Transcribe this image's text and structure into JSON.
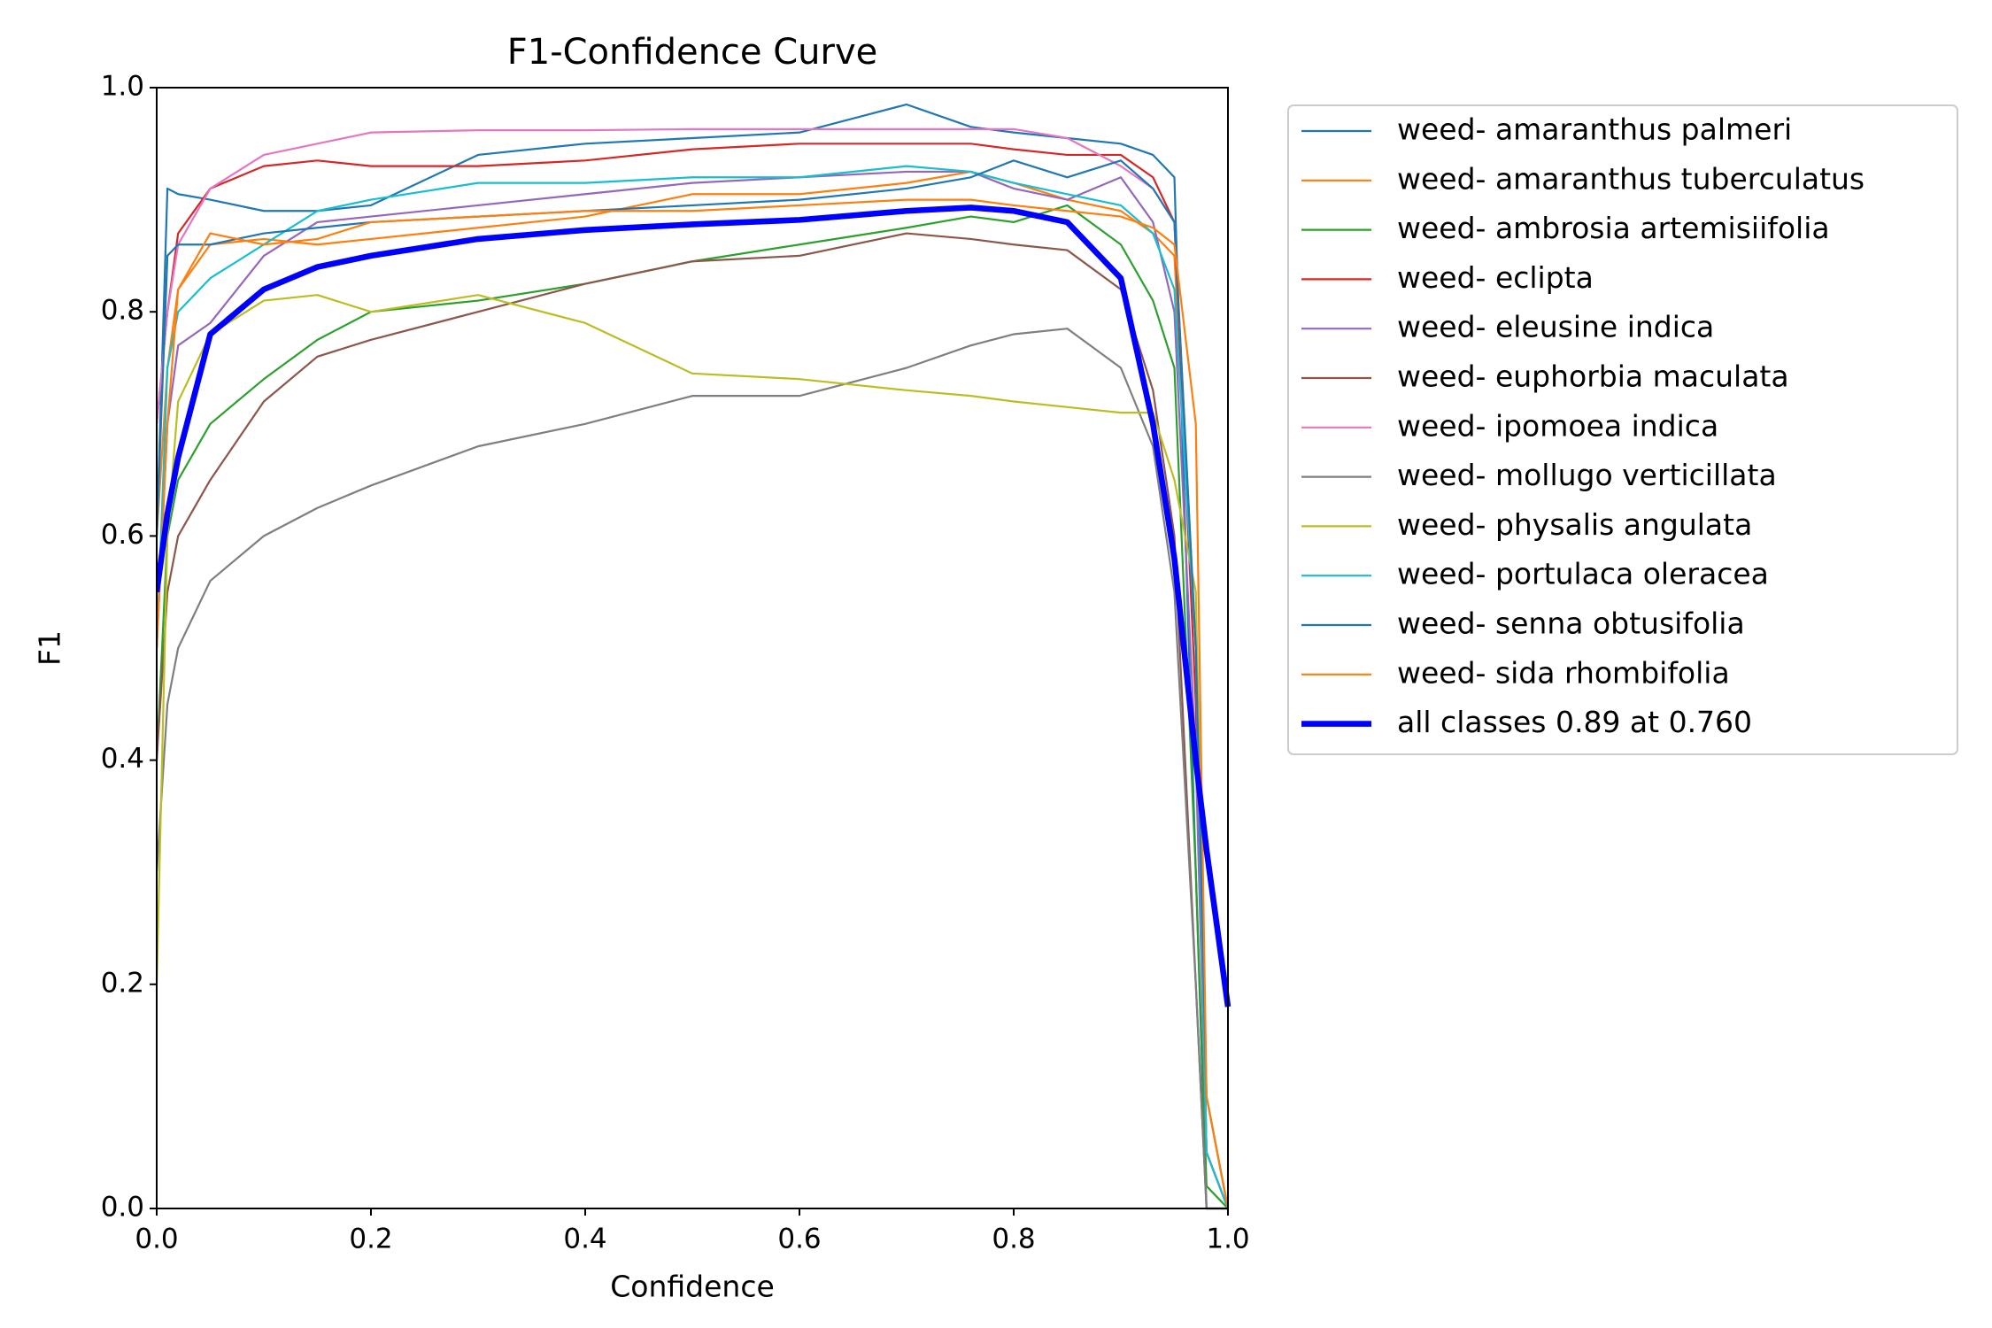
{
  "chart_data": {
    "type": "line",
    "title": "F1-Confidence Curve",
    "xlabel": "Confidence",
    "ylabel": "F1",
    "x": [
      0,
      0.01,
      0.02,
      0.05,
      0.1,
      0.15,
      0.2,
      0.3,
      0.4,
      0.5,
      0.6,
      0.7,
      0.76,
      0.8,
      0.85,
      0.9,
      0.93,
      0.95,
      0.97,
      0.98,
      1.0
    ],
    "xlim": [
      0,
      1
    ],
    "ylim": [
      0,
      1
    ],
    "xticks": [
      {
        "value": 0,
        "label": "0.0"
      },
      0.2,
      0.4,
      0.6,
      0.8,
      {
        "value": 1,
        "label": "1.0"
      }
    ],
    "yticks": [
      {
        "value": 0,
        "label": "0.0"
      },
      0.2,
      0.4,
      0.6,
      0.8,
      {
        "value": 1,
        "label": "1.0"
      }
    ],
    "grid": false,
    "legend": "outside-right",
    "series": [
      {
        "name": "weed- amaranthus palmeri",
        "color": "#1f77b4",
        "linewidth": 1,
        "values": [
          0.6,
          0.91,
          0.905,
          0.9,
          0.89,
          0.89,
          0.895,
          0.94,
          0.95,
          0.955,
          0.96,
          0.985,
          0.965,
          0.96,
          0.955,
          0.95,
          0.94,
          0.92,
          0.3,
          0.0,
          0.0
        ]
      },
      {
        "name": "weed- amaranthus tuberculatus",
        "color": "#ff7f0e",
        "linewidth": 1,
        "values": [
          0.6,
          0.75,
          0.82,
          0.86,
          0.865,
          0.86,
          0.865,
          0.875,
          0.885,
          0.905,
          0.905,
          0.915,
          0.925,
          0.915,
          0.9,
          0.89,
          0.87,
          0.85,
          0.5,
          0.05,
          0.0
        ]
      },
      {
        "name": "weed- ambrosia artemisiifolia",
        "color": "#2ca02c",
        "linewidth": 1,
        "values": [
          0.4,
          0.6,
          0.65,
          0.7,
          0.74,
          0.775,
          0.8,
          0.81,
          0.825,
          0.845,
          0.86,
          0.875,
          0.885,
          0.88,
          0.895,
          0.86,
          0.81,
          0.75,
          0.3,
          0.02,
          0.0
        ]
      },
      {
        "name": "weed- eclipta",
        "color": "#d62728",
        "linewidth": 1,
        "values": [
          0.7,
          0.8,
          0.87,
          0.91,
          0.93,
          0.935,
          0.93,
          0.93,
          0.935,
          0.945,
          0.95,
          0.95,
          0.95,
          0.945,
          0.94,
          0.94,
          0.92,
          0.88,
          0.45,
          0.05,
          0.0
        ]
      },
      {
        "name": "weed- eleusine indica",
        "color": "#9467bd",
        "linewidth": 1,
        "values": [
          0.5,
          0.7,
          0.77,
          0.79,
          0.85,
          0.88,
          0.885,
          0.895,
          0.905,
          0.915,
          0.92,
          0.925,
          0.925,
          0.91,
          0.9,
          0.92,
          0.88,
          0.8,
          0.4,
          0.05,
          0.0
        ]
      },
      {
        "name": "weed- euphorbia maculata",
        "color": "#8c564b",
        "linewidth": 1,
        "values": [
          0.4,
          0.55,
          0.6,
          0.65,
          0.72,
          0.76,
          0.775,
          0.8,
          0.825,
          0.845,
          0.85,
          0.87,
          0.865,
          0.86,
          0.855,
          0.82,
          0.73,
          0.6,
          0.2,
          0.0,
          0.0
        ]
      },
      {
        "name": "weed- ipomoea indica",
        "color": "#e377c2",
        "linewidth": 1,
        "values": [
          0.7,
          0.8,
          0.86,
          0.91,
          0.94,
          0.95,
          0.96,
          0.962,
          0.962,
          0.963,
          0.963,
          0.963,
          0.963,
          0.963,
          0.955,
          0.93,
          0.91,
          0.88,
          0.5,
          0.05,
          0.0
        ]
      },
      {
        "name": "weed- mollugo verticillata",
        "color": "#7f7f7f",
        "linewidth": 1,
        "values": [
          0.3,
          0.45,
          0.5,
          0.56,
          0.6,
          0.625,
          0.645,
          0.68,
          0.7,
          0.725,
          0.725,
          0.75,
          0.77,
          0.78,
          0.785,
          0.75,
          0.68,
          0.55,
          0.2,
          0.0,
          0.0
        ]
      },
      {
        "name": "weed- physalis angulata",
        "color": "#bcbd22",
        "linewidth": 1,
        "values": [
          0.2,
          0.6,
          0.72,
          0.78,
          0.81,
          0.815,
          0.8,
          0.815,
          0.79,
          0.745,
          0.74,
          0.73,
          0.725,
          0.72,
          0.715,
          0.71,
          0.71,
          0.65,
          0.55,
          0.1,
          0.0
        ]
      },
      {
        "name": "weed- portulaca oleracea",
        "color": "#17becf",
        "linewidth": 1,
        "values": [
          0.5,
          0.75,
          0.8,
          0.83,
          0.86,
          0.89,
          0.9,
          0.915,
          0.915,
          0.92,
          0.92,
          0.93,
          0.925,
          0.915,
          0.905,
          0.895,
          0.87,
          0.82,
          0.5,
          0.05,
          0.0
        ]
      },
      {
        "name": "weed- senna obtusifolia",
        "color": "#1f77b4",
        "linewidth": 1,
        "values": [
          0.6,
          0.85,
          0.86,
          0.86,
          0.87,
          0.875,
          0.88,
          0.885,
          0.89,
          0.895,
          0.9,
          0.91,
          0.92,
          0.935,
          0.92,
          0.935,
          0.91,
          0.88,
          0.5,
          0.1,
          0.0
        ]
      },
      {
        "name": "weed- sida rhombifolia",
        "color": "#ff7f0e",
        "linewidth": 1,
        "values": [
          0.5,
          0.7,
          0.82,
          0.87,
          0.86,
          0.865,
          0.88,
          0.885,
          0.89,
          0.89,
          0.895,
          0.9,
          0.9,
          0.895,
          0.89,
          0.885,
          0.875,
          0.86,
          0.7,
          0.1,
          0.0
        ]
      },
      {
        "name": "all classes 0.89 at 0.760",
        "color": "#0000ff",
        "linewidth": 3,
        "values": [
          0.55,
          0.62,
          0.67,
          0.78,
          0.82,
          0.84,
          0.85,
          0.865,
          0.873,
          0.878,
          0.882,
          0.89,
          0.893,
          0.89,
          0.88,
          0.83,
          0.7,
          0.58,
          0.4,
          0.32,
          0.18
        ]
      }
    ]
  }
}
